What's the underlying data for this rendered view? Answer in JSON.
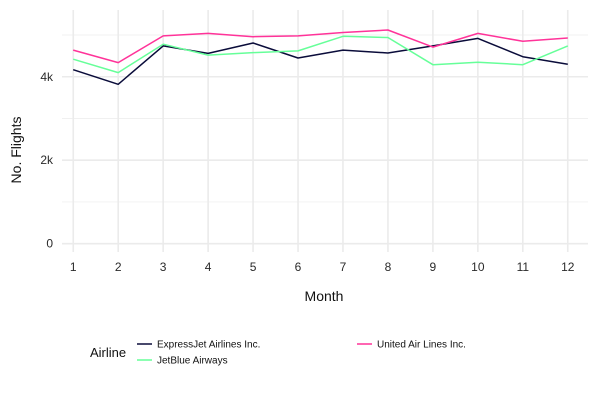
{
  "chart_data": {
    "type": "line",
    "title": "",
    "xlabel": "Month",
    "ylabel": "No. Flights",
    "x": [
      1,
      2,
      3,
      4,
      5,
      6,
      7,
      8,
      9,
      10,
      11,
      12
    ],
    "x_ticks": [
      "1",
      "2",
      "3",
      "4",
      "5",
      "6",
      "7",
      "8",
      "9",
      "10",
      "11",
      "12"
    ],
    "y_ticks": [
      0,
      2000,
      4000
    ],
    "y_tick_labels": [
      "0",
      "2k",
      "4k"
    ],
    "ylim": [
      -200,
      5600
    ],
    "xlim": [
      0.75,
      12.45
    ],
    "grid": true,
    "legend": {
      "title": "Airline",
      "position": "bottom"
    },
    "series": [
      {
        "name": "ExpressJet Airlines Inc.",
        "color": "#0a0c3a",
        "values": [
          4170,
          3820,
          4740,
          4560,
          4810,
          4450,
          4640,
          4570,
          4740,
          4920,
          4480,
          4300
        ]
      },
      {
        "name": "JetBlue Airways",
        "color": "#66ff99",
        "values": [
          4420,
          4100,
          4780,
          4520,
          4580,
          4620,
          4970,
          4940,
          4290,
          4350,
          4290,
          4740
        ]
      },
      {
        "name": "United Air Lines Inc.",
        "color": "#ff3399",
        "values": [
          4640,
          4340,
          4980,
          5040,
          4960,
          4980,
          5060,
          5120,
          4710,
          5040,
          4850,
          4930
        ]
      }
    ]
  }
}
